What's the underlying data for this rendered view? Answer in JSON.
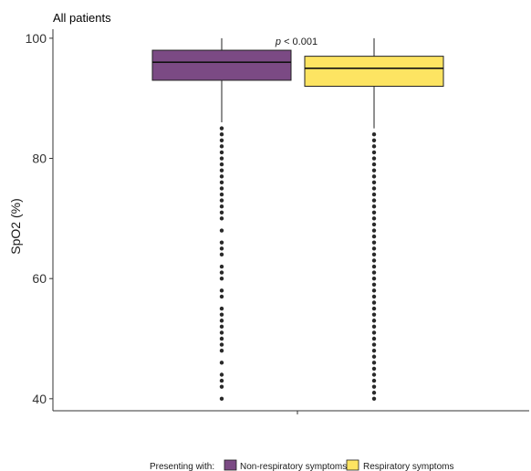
{
  "chart_data": {
    "type": "boxplot",
    "title": "All patients",
    "xlabel": "",
    "ylabel": "SpO2 (%)",
    "ylim": [
      38,
      101.5
    ],
    "yticks": [
      40,
      60,
      80,
      100
    ],
    "grid": false,
    "legend_position": "bottom",
    "legend_title": "Presenting with:",
    "annotation": {
      "italic": "p",
      "rest": " < 0.001"
    },
    "series": [
      {
        "name": "Non-respiratory symptoms",
        "color": "#7B4A84",
        "whisker_low": 86,
        "q1": 93,
        "median": 96,
        "q3": 98,
        "whisker_high": 100,
        "outliers": [
          85,
          84,
          83,
          82,
          81,
          80,
          79,
          78,
          77,
          76,
          75,
          74,
          73,
          72,
          71,
          70,
          68,
          66,
          65,
          64,
          62,
          61,
          60,
          58,
          57,
          55,
          54,
          53,
          52,
          51,
          50,
          49,
          48,
          46,
          44,
          43,
          42,
          40
        ]
      },
      {
        "name": "Respiratory symptoms",
        "color": "#FDE462",
        "whisker_low": 85,
        "q1": 92,
        "median": 95,
        "q3": 97,
        "whisker_high": 100,
        "outliers": [
          84,
          83,
          82,
          81,
          80,
          79,
          78,
          77,
          76,
          75,
          74,
          73,
          72,
          71,
          70,
          69,
          68,
          67,
          66,
          65,
          64,
          63,
          62,
          61,
          60,
          59,
          58,
          57,
          56,
          55,
          54,
          53,
          52,
          51,
          50,
          49,
          48,
          47,
          46,
          45,
          44,
          43,
          42,
          41,
          40
        ]
      }
    ]
  }
}
